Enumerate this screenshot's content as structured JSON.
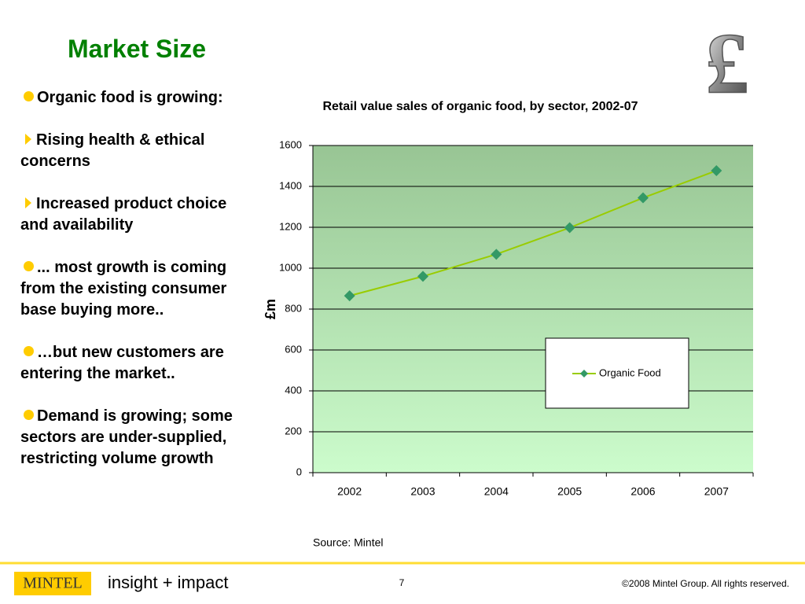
{
  "header": {
    "title": "Market Size",
    "symbol": "£"
  },
  "bullets": [
    "Organic food is growing:",
    "Rising health & ethical concerns",
    "Increased product choice and availability",
    "... most growth is coming from the existing consumer base buying more..",
    "…but new customers are entering the market..",
    "Demand is growing; some sectors are under-supplied, restricting volume growth"
  ],
  "chart_data": {
    "type": "line",
    "title": "Retail value sales of organic food, by sector, 2002-07",
    "y_label": "£m",
    "categories": [
      "2002",
      "2003",
      "2004",
      "2005",
      "2006",
      "2007"
    ],
    "series": [
      {
        "name": "Organic Food",
        "color": "#99cc00",
        "marker_color": "#339966",
        "values": [
          865,
          960,
          1068,
          1198,
          1344,
          1477
        ]
      }
    ],
    "ylim": [
      0,
      1600
    ],
    "yticks": [
      0,
      200,
      400,
      600,
      800,
      1000,
      1200,
      1400,
      1600
    ],
    "grid": true,
    "source": "Source: Mintel"
  },
  "footer": {
    "logo": "MINTEL",
    "tagline": "insight + impact",
    "page": 7,
    "copyright": "©2008 Mintel Group. All rights reserved."
  }
}
